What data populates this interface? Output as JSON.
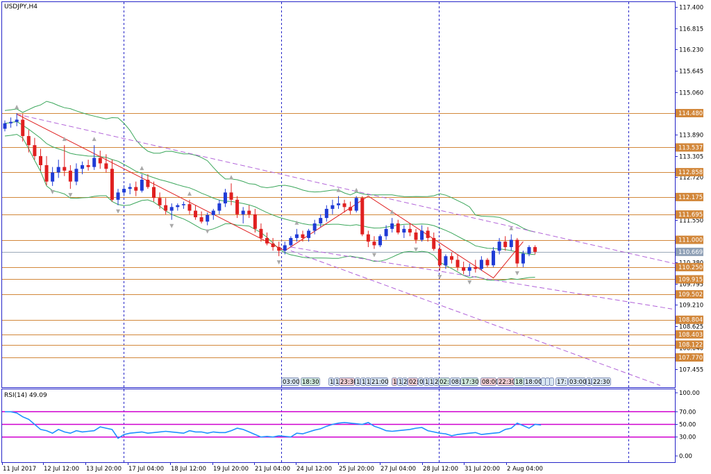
{
  "window": {
    "title": "USDJPY,H4"
  },
  "indicator": {
    "label": "RSI(14) 49.09"
  },
  "colors": {
    "bull": "#1f3bd6",
    "bear": "#e02020",
    "level": "#d2873a",
    "vline": "#2424c8",
    "bands": "#3aa65a",
    "trendline": "#b060d8",
    "rsi": "#1e90ff",
    "rsi_level": "#d000d0",
    "current_price_box": "#8fa0b6",
    "axis": "#2424c8"
  },
  "chart_data": [
    {
      "type": "candlestick",
      "title": "USDJPY,H4",
      "y_ticks": [
        "117.400",
        "116.815",
        "116.230",
        "115.645",
        "115.060",
        "114.475",
        "113.890",
        "113.305",
        "112.720",
        "112.135",
        "111.550",
        "110.965",
        "110.380",
        "109.795",
        "109.210",
        "108.625",
        "108.040",
        "107.455"
      ],
      "ylim": [
        106.95,
        117.53
      ],
      "x_labels": [
        "11 Jul 2017",
        "12 Jul 12:00",
        "13 Jul 20:00",
        "17 Jul 04:00",
        "18 Jul 12:00",
        "19 Jul 20:00",
        "21 Jul 04:00",
        "24 Jul 12:00",
        "25 Jul 20:00",
        "27 Jul 04:00",
        "28 Jul 12:00",
        "31 Jul 20:00",
        "2 Aug 04:00"
      ],
      "horizontal_levels": [
        "114.480",
        "113.537",
        "112.858",
        "112.175",
        "111.695",
        "111.000",
        "110.250",
        "109.915",
        "109.502",
        "108.804",
        "108.403",
        "108.122",
        "107.770"
      ],
      "current_price": "110.669",
      "series": [
        {
          "name": "USDJPY",
          "ohlc": [
            [
              114.05,
              114.28,
              113.98,
              114.2
            ],
            [
              114.2,
              114.36,
              114.08,
              114.24
            ],
            [
              114.24,
              114.48,
              114.12,
              114.3
            ],
            [
              114.3,
              114.46,
              113.7,
              113.85
            ],
            [
              113.85,
              114.02,
              113.4,
              113.6
            ],
            [
              113.6,
              113.8,
              113.2,
              113.3
            ],
            [
              113.3,
              113.5,
              112.9,
              113.05
            ],
            [
              113.05,
              113.3,
              112.5,
              112.6
            ],
            [
              112.6,
              113.0,
              112.48,
              112.85
            ],
            [
              112.85,
              113.2,
              112.7,
              113.0
            ],
            [
              113.0,
              113.6,
              112.75,
              112.9
            ],
            [
              112.9,
              113.05,
              112.4,
              112.6
            ],
            [
              112.6,
              113.1,
              112.5,
              112.95
            ],
            [
              112.95,
              113.15,
              112.8,
              113.05
            ],
            [
              113.05,
              113.2,
              112.9,
              113.0
            ],
            [
              113.0,
              113.6,
              112.92,
              113.25
            ],
            [
              113.25,
              113.45,
              112.95,
              113.1
            ],
            [
              113.1,
              113.35,
              112.85,
              112.95
            ],
            [
              112.95,
              113.2,
              112.05,
              112.1
            ],
            [
              112.1,
              112.4,
              111.95,
              112.3
            ],
            [
              112.3,
              112.5,
              112.2,
              112.4
            ],
            [
              112.4,
              112.55,
              112.25,
              112.45
            ],
            [
              112.45,
              112.6,
              112.2,
              112.35
            ],
            [
              112.35,
              112.8,
              112.3,
              112.65
            ],
            [
              112.65,
              112.8,
              112.4,
              112.45
            ],
            [
              112.45,
              112.6,
              112.05,
              112.15
            ],
            [
              112.15,
              112.3,
              111.85,
              111.95
            ],
            [
              111.95,
              112.15,
              111.7,
              111.8
            ],
            [
              111.8,
              112.0,
              111.55,
              111.9
            ],
            [
              111.9,
              112.0,
              111.8,
              111.95
            ],
            [
              111.95,
              112.05,
              111.85,
              111.98
            ],
            [
              111.98,
              112.1,
              111.7,
              111.8
            ],
            [
              111.8,
              111.95,
              111.55,
              111.62
            ],
            [
              111.62,
              111.78,
              111.45,
              111.5
            ],
            [
              111.5,
              111.75,
              111.4,
              111.68
            ],
            [
              111.68,
              111.85,
              111.55,
              111.8
            ],
            [
              111.8,
              112.1,
              111.7,
              112.0
            ],
            [
              112.0,
              112.4,
              111.9,
              112.3
            ],
            [
              112.3,
              112.55,
              111.95,
              112.1
            ],
            [
              112.1,
              112.2,
              111.6,
              111.7
            ],
            [
              111.7,
              111.9,
              111.45,
              111.8
            ],
            [
              111.8,
              111.95,
              111.6,
              111.7
            ],
            [
              111.7,
              111.85,
              111.2,
              111.3
            ],
            [
              111.3,
              111.45,
              110.95,
              111.05
            ],
            [
              111.05,
              111.2,
              110.85,
              110.9
            ],
            [
              110.9,
              111.05,
              110.7,
              110.8
            ],
            [
              110.8,
              110.95,
              110.55,
              110.7
            ],
            [
              110.7,
              110.95,
              110.6,
              110.85
            ],
            [
              110.85,
              111.1,
              110.8,
              111.05
            ],
            [
              111.05,
              111.3,
              110.95,
              111.15
            ],
            [
              111.15,
              111.25,
              110.95,
              111.05
            ],
            [
              111.05,
              111.3,
              110.95,
              111.25
            ],
            [
              111.25,
              111.55,
              111.15,
              111.45
            ],
            [
              111.45,
              111.7,
              111.35,
              111.6
            ],
            [
              111.6,
              111.95,
              111.5,
              111.85
            ],
            [
              111.85,
              112.1,
              111.7,
              111.95
            ],
            [
              111.95,
              112.2,
              111.85,
              112.0
            ],
            [
              112.0,
              112.1,
              111.75,
              111.9
            ],
            [
              111.9,
              112.05,
              111.7,
              111.8
            ],
            [
              111.8,
              112.2,
              111.75,
              112.15
            ],
            [
              112.15,
              112.2,
              111.1,
              111.15
            ],
            [
              111.15,
              111.25,
              110.8,
              110.95
            ],
            [
              110.95,
              111.1,
              110.75,
              110.85
            ],
            [
              110.85,
              111.15,
              110.8,
              111.1
            ],
            [
              111.1,
              111.4,
              111.0,
              111.3
            ],
            [
              111.3,
              111.6,
              111.2,
              111.45
            ],
            [
              111.45,
              111.55,
              111.15,
              111.2
            ],
            [
              111.2,
              111.4,
              111.05,
              111.3
            ],
            [
              111.3,
              111.45,
              111.1,
              111.2
            ],
            [
              111.2,
              111.3,
              110.9,
              111.0
            ],
            [
              111.0,
              111.4,
              110.95,
              111.25
            ],
            [
              111.25,
              111.35,
              110.95,
              111.05
            ],
            [
              111.05,
              111.2,
              110.7,
              110.75
            ],
            [
              110.75,
              110.85,
              110.15,
              110.3
            ],
            [
              110.3,
              110.6,
              110.2,
              110.55
            ],
            [
              110.55,
              110.65,
              110.35,
              110.45
            ],
            [
              110.45,
              110.6,
              110.15,
              110.25
            ],
            [
              110.25,
              110.4,
              110.05,
              110.15
            ],
            [
              110.15,
              110.35,
              110.0,
              110.25
            ],
            [
              110.25,
              110.45,
              110.1,
              110.2
            ],
            [
              110.2,
              110.55,
              110.15,
              110.45
            ],
            [
              110.45,
              110.5,
              110.25,
              110.3
            ],
            [
              110.3,
              110.8,
              110.25,
              110.7
            ],
            [
              110.7,
              111.05,
              110.6,
              110.95
            ],
            [
              110.95,
              111.1,
              110.7,
              110.8
            ],
            [
              110.8,
              111.15,
              110.7,
              111.0
            ],
            [
              111.0,
              111.05,
              110.25,
              110.35
            ],
            [
              110.35,
              110.7,
              110.25,
              110.62
            ],
            [
              110.62,
              110.85,
              110.55,
              110.8
            ],
            [
              110.8,
              110.85,
              110.6,
              110.67
            ]
          ]
        }
      ]
    },
    {
      "type": "line",
      "title": "RSI(14) 49.09",
      "y_ticks": [
        "100.00",
        "70.00",
        "50.00",
        "30.00",
        "0.00"
      ],
      "ylim": [
        0,
        100
      ],
      "levels": [
        70,
        50,
        30
      ],
      "series": [
        {
          "name": "RSI(14)",
          "values": [
            70,
            70,
            68,
            62,
            58,
            50,
            42,
            40,
            36,
            42,
            38,
            36,
            40,
            38,
            39,
            40,
            46,
            44,
            42,
            28,
            34,
            36,
            37,
            38,
            36,
            37,
            38,
            39,
            38,
            37,
            36,
            40,
            38,
            38,
            36,
            38,
            37,
            37,
            40,
            44,
            42,
            38,
            34,
            30,
            31,
            30,
            32,
            31,
            30,
            36,
            35,
            38,
            41,
            43,
            47,
            50,
            52,
            53,
            52,
            51,
            50,
            53,
            47,
            44,
            40,
            39,
            40,
            41,
            42,
            44,
            45,
            40,
            38,
            36,
            35,
            32,
            34,
            35,
            36,
            37,
            34,
            35,
            36,
            37,
            42,
            44,
            52,
            48,
            44,
            50,
            49
          ]
        }
      ]
    }
  ]
}
